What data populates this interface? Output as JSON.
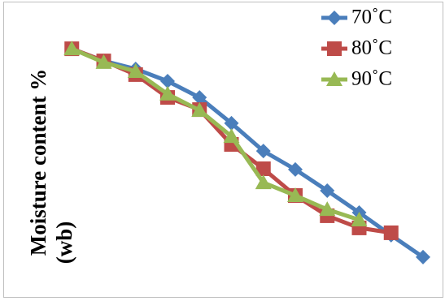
{
  "chart_data": {
    "type": "line",
    "y_label_lines": [
      "Moisture content %",
      "(wb)"
    ],
    "x": [
      1,
      2,
      3,
      4,
      5,
      6,
      7,
      8,
      9,
      10,
      11,
      12
    ],
    "xlim": [
      0,
      12
    ],
    "ylim": [
      0,
      100
    ],
    "legend": "top-right",
    "series": [
      {
        "name": "70˚C",
        "color": "#4a7ebb",
        "marker": "diamond",
        "values": [
          93.3,
          88.3,
          85,
          80,
          73.3,
          62.7,
          51.3,
          43.7,
          35,
          26,
          16.7,
          7.7
        ]
      },
      {
        "name": "80˚C",
        "color": "#be4b48",
        "marker": "square",
        "values": [
          93.3,
          88.3,
          82.7,
          73.3,
          68.3,
          54,
          44,
          33,
          24.7,
          19.7,
          17.7,
          null
        ]
      },
      {
        "name": "90˚C",
        "color": "#98b954",
        "marker": "triangle",
        "values": [
          93.3,
          87.7,
          84,
          74.7,
          68,
          57.3,
          38.3,
          33,
          27.3,
          23,
          null,
          null
        ]
      }
    ]
  }
}
